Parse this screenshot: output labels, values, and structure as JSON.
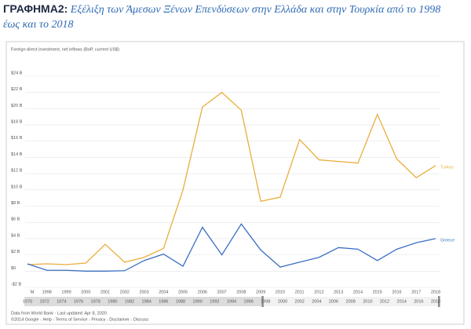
{
  "chart_data": {
    "type": "line",
    "heading": "ΓΡΑΦΗΜΑ2:",
    "title": "Εξέλιξη των Άμεσων Ξένων Επενδύσεων στην Ελλάδα και στην Τουρκία από το 1998 έως και το 2018",
    "y_label": "Foreign direct investment, net inflows (BoP, current US$)",
    "categories": [
      "M",
      "1998",
      "1999",
      "2000",
      "2001",
      "2002",
      "2003",
      "2004",
      "2005",
      "2006",
      "2007",
      "2008",
      "2009",
      "2010",
      "2011",
      "2012",
      "2013",
      "2014",
      "2015",
      "2016",
      "2017",
      "2018"
    ],
    "series": [
      {
        "name": "Turkey",
        "color": "#e9ad3c",
        "values": [
          0.8,
          0.9,
          0.8,
          1.0,
          3.3,
          1.1,
          1.7,
          2.8,
          10.0,
          20.2,
          22.0,
          19.8,
          8.6,
          9.1,
          16.2,
          13.7,
          13.5,
          13.3,
          19.3,
          13.8,
          11.5,
          13.0
        ]
      },
      {
        "name": "Greece",
        "color": "#3b6fc4",
        "values": [
          0.9,
          0.1,
          0.1,
          0.0,
          0.0,
          0.05,
          1.3,
          2.1,
          0.6,
          5.4,
          2.0,
          5.8,
          2.6,
          0.5,
          1.1,
          1.7,
          2.9,
          2.7,
          1.3,
          2.7,
          3.5,
          4.0
        ]
      }
    ],
    "ylim": [
      -2,
      24
    ],
    "yticks": [
      {
        "value": -2,
        "label": "-$2 B"
      },
      {
        "value": 0,
        "label": "$0"
      },
      {
        "value": 2,
        "label": "$2 B"
      },
      {
        "value": 4,
        "label": "$4 B"
      },
      {
        "value": 6,
        "label": "$6 B"
      },
      {
        "value": 8,
        "label": "$8 B"
      },
      {
        "value": 10,
        "label": "$10 B"
      },
      {
        "value": 12,
        "label": "$12 B"
      },
      {
        "value": 14,
        "label": "$14 B"
      },
      {
        "value": 16,
        "label": "$16 B"
      },
      {
        "value": 18,
        "label": "$18 B"
      },
      {
        "value": 20,
        "label": "$20 B"
      },
      {
        "value": 22,
        "label": "$22 B"
      },
      {
        "value": 24,
        "label": "$24 B"
      }
    ],
    "grid": true,
    "slider_labels": [
      "1970",
      "1972",
      "1974",
      "1976",
      "1978",
      "1980",
      "1982",
      "1984",
      "1986",
      "1988",
      "1990",
      "1992",
      "1994",
      "1996",
      "1998",
      "2000",
      "2002",
      "2004",
      "2006",
      "2008",
      "2010",
      "2012",
      "2014",
      "2016",
      "2018"
    ],
    "footer": [
      "Data from World Bank · Last updated: Apr 8, 2020",
      "©2014 Google - Help - Terms of Service - Privacy - Disclaimer - Discuss"
    ]
  }
}
